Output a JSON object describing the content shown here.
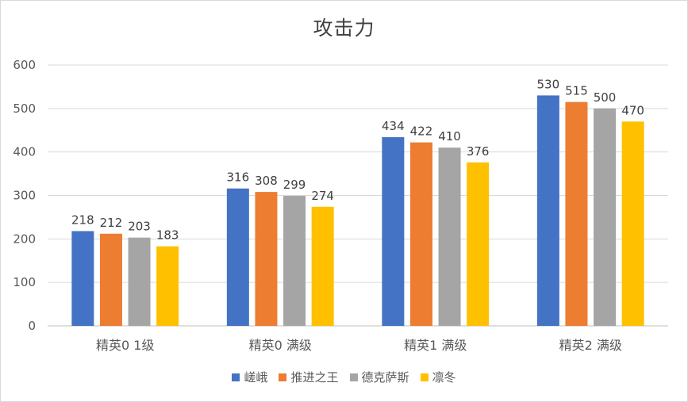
{
  "chart_data": {
    "type": "bar",
    "title": "攻击力",
    "categories": [
      "精英0 1级",
      "精英0 满级",
      "精英1 满级",
      "精英2 满级"
    ],
    "series": [
      {
        "name": "嵯峨",
        "color": "#4472C4",
        "values": [
          218,
          316,
          434,
          530
        ]
      },
      {
        "name": "推进之王",
        "color": "#ED7D31",
        "values": [
          212,
          308,
          422,
          515
        ]
      },
      {
        "name": "德克萨斯",
        "color": "#A5A5A5",
        "values": [
          203,
          299,
          410,
          500
        ]
      },
      {
        "name": "凛冬",
        "color": "#FFC000",
        "values": [
          183,
          274,
          376,
          470
        ]
      }
    ],
    "ylim": [
      0,
      600
    ],
    "yticks": [
      0,
      100,
      200,
      300,
      400,
      500,
      600
    ],
    "grid": true,
    "legend_position": "bottom"
  }
}
